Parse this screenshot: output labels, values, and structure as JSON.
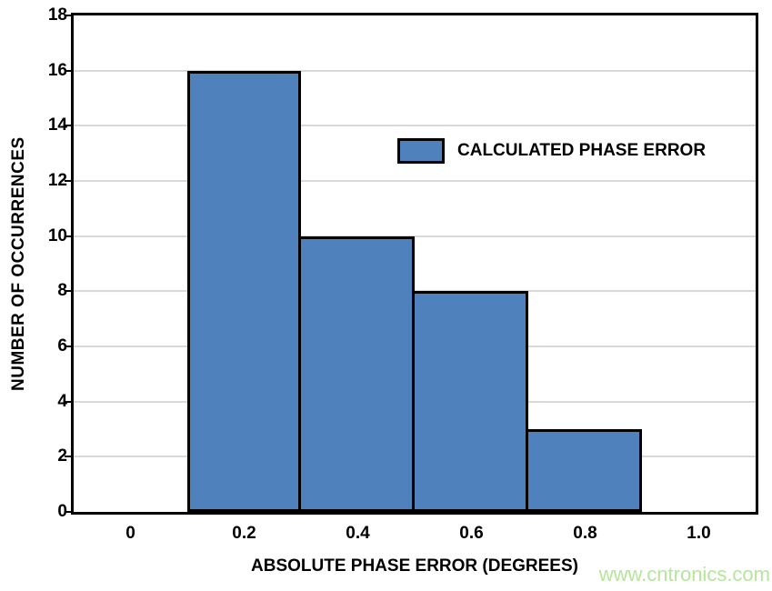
{
  "chart_data": {
    "type": "bar",
    "title": "",
    "categories": [
      "0",
      "0.2",
      "0.4",
      "0.6",
      "0.8",
      "1.0"
    ],
    "values": [
      0,
      16,
      10,
      8,
      3,
      0
    ],
    "xlabel": "ABSOLUTE PHASE ERROR (DEGREES)",
    "ylabel": "NUMBER OF OCCURRENCES",
    "ylim": [
      0,
      18
    ],
    "ytick_step": 2,
    "grid": true,
    "legend_position": "inside-upper-middle-right",
    "bar_color": "#4f81bd",
    "bar_border_color": "#000000",
    "gridline_color": "#d9d9d9",
    "axis_color": "#000000",
    "legend": [
      {
        "label": "CALCULATED PHASE ERROR",
        "color": "#4f81bd"
      }
    ]
  },
  "watermark": {
    "text": "www.cntronics.com",
    "color": "#b5e69c"
  }
}
